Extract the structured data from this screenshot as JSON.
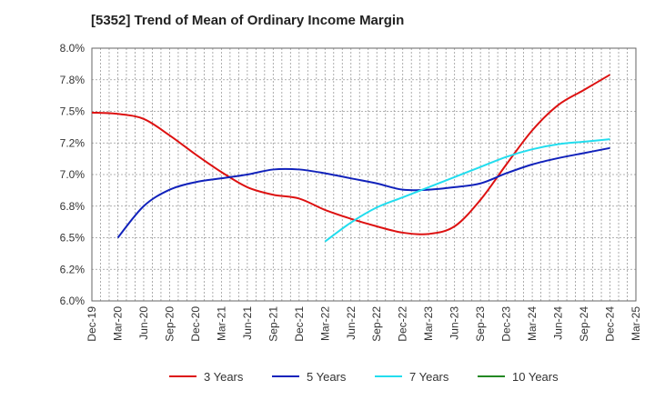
{
  "chart_data": {
    "type": "line",
    "title": "[5352]  Trend of Mean of Ordinary Income Margin",
    "xlabel": "",
    "ylabel": "",
    "x_ticks": [
      "Dec-19",
      "Mar-20",
      "Jun-20",
      "Sep-20",
      "Dec-20",
      "Mar-21",
      "Jun-21",
      "Sep-21",
      "Dec-21",
      "Mar-22",
      "Jun-22",
      "Sep-22",
      "Dec-22",
      "Mar-23",
      "Jun-23",
      "Sep-23",
      "Dec-23",
      "Mar-24",
      "Jun-24",
      "Sep-24",
      "Dec-24",
      "Mar-25"
    ],
    "y_ticks": [
      "6.0%",
      "6.2%",
      "6.5%",
      "6.8%",
      "7.0%",
      "7.2%",
      "7.5%",
      "7.8%",
      "8.0%"
    ],
    "ylim": [
      6.0,
      8.0
    ],
    "grid": true,
    "legend_position": "bottom",
    "series": [
      {
        "name": "3 Years",
        "color": "#dd1111",
        "values": [
          7.49,
          7.48,
          7.44,
          7.31,
          7.16,
          7.02,
          6.9,
          6.84,
          6.81,
          6.72,
          6.65,
          6.59,
          6.54,
          6.53,
          6.59,
          6.8,
          7.08,
          7.35,
          7.55,
          7.67,
          7.79,
          null
        ]
      },
      {
        "name": "5 Years",
        "color": "#1122bb",
        "values": [
          null,
          6.5,
          6.75,
          6.88,
          6.94,
          6.97,
          7.0,
          7.04,
          7.04,
          7.01,
          6.97,
          6.93,
          6.88,
          6.88,
          6.9,
          6.93,
          7.01,
          7.08,
          7.13,
          7.17,
          7.21,
          null
        ]
      },
      {
        "name": "7 Years",
        "color": "#22ddee",
        "values": [
          null,
          null,
          null,
          null,
          null,
          null,
          null,
          null,
          null,
          6.47,
          6.62,
          6.74,
          6.82,
          6.9,
          6.98,
          7.06,
          7.14,
          7.2,
          7.24,
          7.26,
          7.28,
          null
        ]
      },
      {
        "name": "10 Years",
        "color": "#228822",
        "values": [
          null,
          null,
          null,
          null,
          null,
          null,
          null,
          null,
          null,
          null,
          null,
          null,
          null,
          null,
          null,
          null,
          null,
          null,
          null,
          null,
          null,
          null
        ]
      }
    ]
  }
}
